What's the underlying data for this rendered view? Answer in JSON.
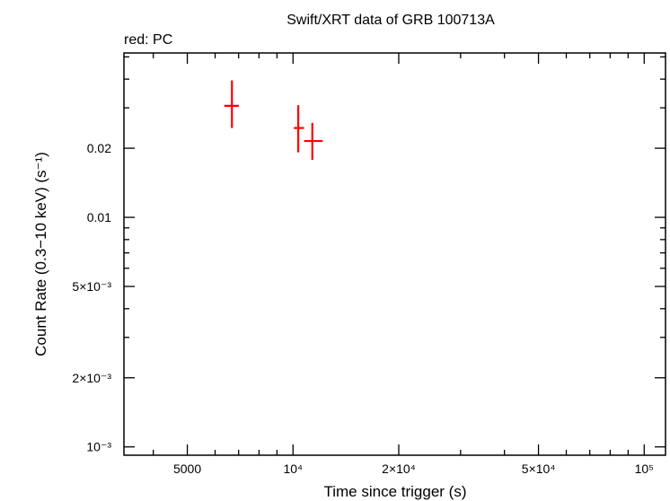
{
  "chart_data": {
    "type": "scatter",
    "title": "Swift/XRT data of GRB 100713A",
    "subtitle": "red: PC",
    "xlabel": "Time since trigger (s)",
    "ylabel": "Count Rate (0.3−10 keV) (s⁻¹)",
    "x_scale": "log",
    "y_scale": "log",
    "xlim": [
      3300,
      115000
    ],
    "ylim": [
      0.00092,
      0.052
    ],
    "grid": false,
    "x_ticks": [
      {
        "value": 5000,
        "label": "5000"
      },
      {
        "value": 10000,
        "label": "10⁴"
      },
      {
        "value": 20000,
        "label": "2×10⁴"
      },
      {
        "value": 50000,
        "label": "5×10⁴"
      },
      {
        "value": 100000,
        "label": "10⁵"
      }
    ],
    "y_ticks": [
      {
        "value": 0.001,
        "label": "10⁻³"
      },
      {
        "value": 0.002,
        "label": "2×10⁻³"
      },
      {
        "value": 0.005,
        "label": "5×10⁻³"
      },
      {
        "value": 0.01,
        "label": "0.01"
      },
      {
        "value": 0.02,
        "label": "0.02"
      }
    ],
    "series": [
      {
        "color": "#ff0000",
        "points": [
          {
            "x": 6700,
            "xerr": [
              6370,
              7010
            ],
            "y": 0.0306,
            "yerr": [
              0.0245,
              0.0395
            ]
          },
          {
            "x": 10350,
            "xerr": [
              10050,
              10750
            ],
            "y": 0.0245,
            "yerr": [
              0.0192,
              0.0308
            ]
          },
          {
            "x": 11350,
            "xerr": [
              10750,
              12150
            ],
            "y": 0.0215,
            "yerr": [
              0.0178,
              0.0258
            ]
          }
        ]
      }
    ]
  }
}
